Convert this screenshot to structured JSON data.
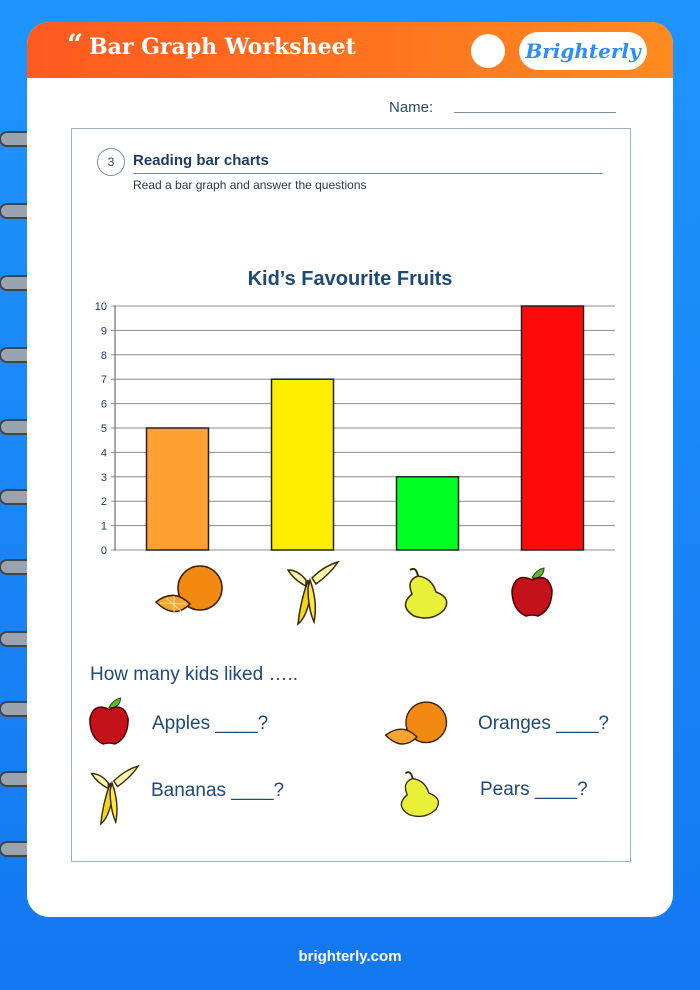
{
  "header": {
    "quote_mark": "“",
    "title": "Bar Graph Worksheet",
    "logo": "Brighterly"
  },
  "name_label": "Name:",
  "section": {
    "number": "3",
    "title": "Reading bar charts",
    "subtitle": "Read a bar graph and answer the questions"
  },
  "chart_data": {
    "type": "bar",
    "title": "Kid’s Favourite Fruits",
    "categories": [
      "orange-icon",
      "banana-icon",
      "pear-icon",
      "apple-icon"
    ],
    "values": [
      5,
      7,
      3,
      10
    ],
    "colors": [
      "#ffa033",
      "#ffee00",
      "#00ff22",
      "#ff0a0a"
    ],
    "ylim": [
      0,
      10
    ],
    "yticks": [
      "0",
      "1",
      "2",
      "3",
      "4",
      "5",
      "6",
      "7",
      "8",
      "9",
      "10"
    ],
    "grid": true,
    "xlabel": "",
    "ylabel": ""
  },
  "questions": {
    "prompt": "How many kids liked …..",
    "apples": "Apples ____?",
    "oranges": "Oranges ____?",
    "bananas": "Bananas ____?",
    "pears": "Pears ____?"
  },
  "footer": "brighterly.com"
}
